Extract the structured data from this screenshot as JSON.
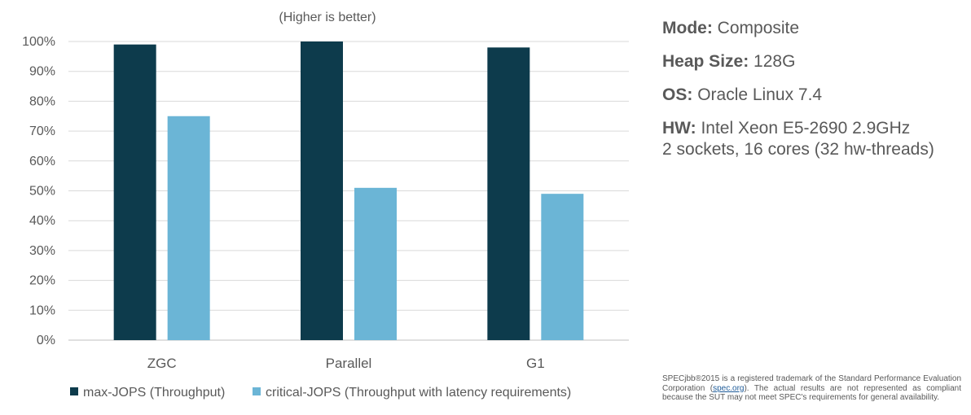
{
  "chart_data": {
    "type": "bar",
    "title": "(Higher is better)",
    "categories": [
      "ZGC",
      "Parallel",
      "G1"
    ],
    "series": [
      {
        "name": "max-JOPS (Throughput)",
        "color": "#0d3b4c",
        "values": [
          99,
          100,
          98
        ]
      },
      {
        "name": "critical-JOPS (Throughput with latency requirements)",
        "color": "#6bb5d6",
        "values": [
          75,
          51,
          49
        ]
      }
    ],
    "yticks": [
      "0%",
      "10%",
      "20%",
      "30%",
      "40%",
      "50%",
      "60%",
      "70%",
      "80%",
      "90%",
      "100%"
    ],
    "ylim": [
      0,
      100
    ],
    "grid": true,
    "legend_position": "bottom"
  },
  "info": {
    "mode": {
      "key": "Mode:",
      "value": "Composite"
    },
    "heap": {
      "key": "Heap Size:",
      "value": "128G"
    },
    "os": {
      "key": "OS:",
      "value": "Oracle Linux 7.4"
    },
    "hw": {
      "key": "HW:",
      "value": "Intel Xeon E5-2690 2.9GHz",
      "value2": "2 sockets, 16 cores (32 hw-threads)"
    }
  },
  "footnote": {
    "before": "SPECjbb®2015 is a registered trademark of the Standard Performance Evaluation Corporation (",
    "link": "spec.org",
    "after": "). The actual results are not represented as compliant because the SUT may not meet SPEC's requirements for general availability."
  }
}
